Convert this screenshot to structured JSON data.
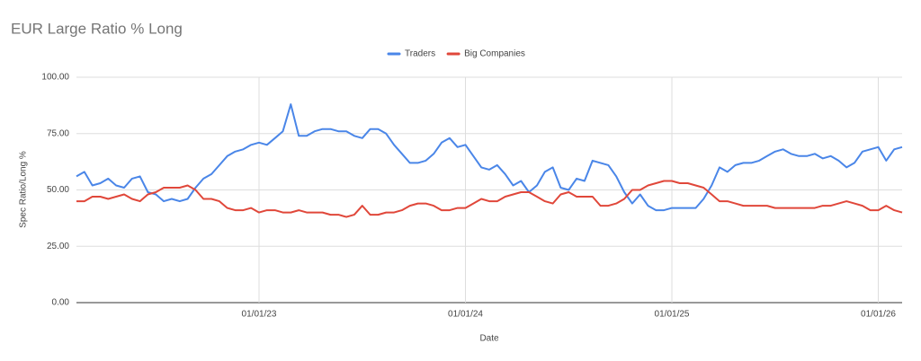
{
  "chart_data": {
    "type": "line",
    "title": "EUR Large Ratio % Long",
    "x_label": "Date",
    "y_label": "Spec Ratio/Long %",
    "categories": [
      null,
      null,
      null,
      null,
      null,
      null,
      null,
      null,
      null,
      null,
      null,
      null,
      null,
      null,
      null,
      null,
      null,
      null,
      null,
      null,
      null,
      null,
      null,
      "01/01/23",
      null,
      null,
      null,
      null,
      null,
      null,
      null,
      null,
      null,
      null,
      null,
      null,
      null,
      null,
      null,
      null,
      null,
      null,
      null,
      null,
      null,
      null,
      null,
      null,
      null,
      "01/01/24",
      null,
      null,
      null,
      null,
      null,
      null,
      null,
      null,
      null,
      null,
      null,
      null,
      null,
      null,
      null,
      null,
      null,
      null,
      null,
      null,
      null,
      null,
      null,
      null,
      null,
      "01/01/25",
      null,
      null,
      null,
      null,
      null,
      null,
      null,
      null,
      null,
      null,
      null,
      null,
      null,
      null,
      null,
      null,
      null,
      null,
      null,
      null,
      null,
      null,
      null,
      null,
      null,
      "01/01/26",
      null,
      null,
      null
    ],
    "series": [
      {
        "name": "Traders",
        "color": "#4a86e8",
        "values": [
          56,
          58,
          52,
          53,
          55,
          52,
          51,
          55,
          56,
          49,
          48,
          45,
          46,
          45,
          46,
          51,
          55,
          57,
          61,
          65,
          67,
          68,
          70,
          71,
          70,
          73,
          76,
          88,
          74,
          74,
          76,
          77,
          77,
          76,
          76,
          74,
          73,
          77,
          77,
          75,
          70,
          66,
          62,
          62,
          63,
          66,
          71,
          73,
          69,
          70,
          65,
          60,
          59,
          61,
          57,
          52,
          54,
          49,
          52,
          58,
          60,
          51,
          50,
          55,
          54,
          63,
          62,
          61,
          56,
          49,
          44,
          48,
          43,
          41,
          41,
          42,
          42,
          42,
          42,
          46,
          52,
          60,
          58,
          61,
          62,
          62,
          63,
          65,
          67,
          68,
          66,
          65,
          65,
          66,
          64,
          65,
          63,
          60,
          62,
          67,
          68,
          69,
          63,
          68,
          69
        ]
      },
      {
        "name": "Big Companies",
        "color": "#e0473a",
        "values": [
          45,
          45,
          47,
          47,
          46,
          47,
          48,
          46,
          45,
          48,
          49,
          51,
          51,
          51,
          52,
          50,
          46,
          46,
          45,
          42,
          41,
          41,
          42,
          40,
          41,
          41,
          40,
          40,
          41,
          40,
          40,
          40,
          39,
          39,
          38,
          39,
          43,
          39,
          39,
          40,
          40,
          41,
          43,
          44,
          44,
          43,
          41,
          41,
          42,
          42,
          44,
          46,
          45,
          45,
          47,
          48,
          49,
          49,
          47,
          45,
          44,
          48,
          49,
          47,
          47,
          47,
          43,
          43,
          44,
          46,
          50,
          50,
          52,
          53,
          54,
          54,
          53,
          53,
          52,
          51,
          48,
          45,
          45,
          44,
          43,
          43,
          43,
          43,
          42,
          42,
          42,
          42,
          42,
          42,
          43,
          43,
          44,
          45,
          44,
          43,
          41,
          41,
          43,
          41,
          40
        ]
      }
    ],
    "ylim": [
      0,
      100
    ],
    "yticks": [
      {
        "value": 0,
        "label": "0.00"
      },
      {
        "value": 25,
        "label": "25.00"
      },
      {
        "value": 50,
        "label": "50.00"
      },
      {
        "value": 75,
        "label": "75.00"
      },
      {
        "value": 100,
        "label": "100.00"
      }
    ],
    "grid": true,
    "legend": "top"
  }
}
